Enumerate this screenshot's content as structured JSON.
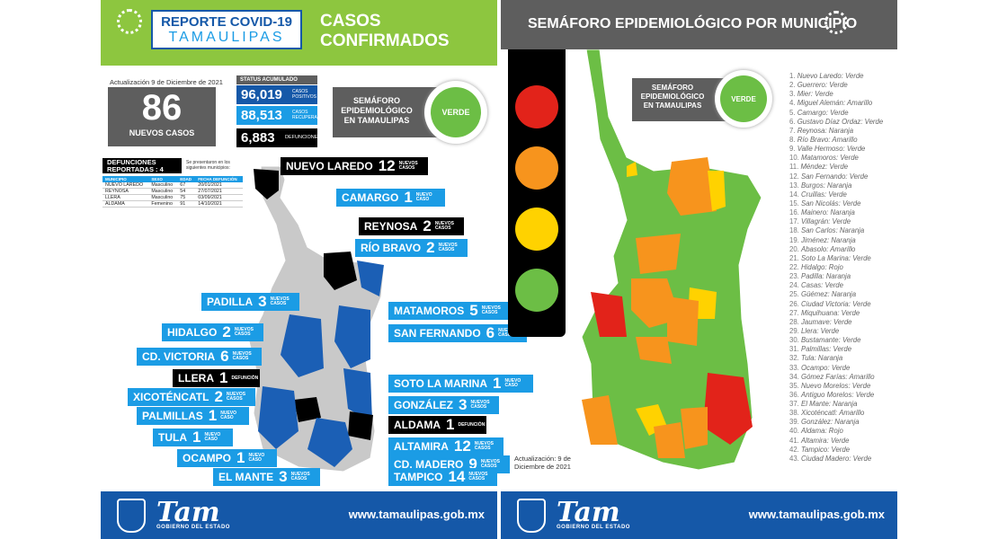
{
  "header": {
    "title_line1": "REPORTE COVID-19",
    "title_line2": "TAMAULIPAS",
    "section_title": "CASOS CONFIRMADOS",
    "right_title": "SEMÁFORO EPIDEMIOLÓGICO POR MUNICIPIO"
  },
  "update": "Actualización 9 de Diciembre de 2021",
  "new_cases": {
    "value": "86",
    "label": "NUEVOS CASOS"
  },
  "status": {
    "title": "STATUS ACUMULADO",
    "positivos": "96,019",
    "positivos_label": "CASOS POSITIVOS",
    "recuperados": "88,513",
    "recuperados_label": "CASOS RECUPERADOS",
    "defunciones": "6,883",
    "defunciones_label": "DEFUNCIONES"
  },
  "semaforo": {
    "label": "SEMÁFORO EPIDEMIOLÓGICO EN TAMAULIPAS",
    "status": "VERDE"
  },
  "deaths": {
    "title": "DEFUNCIONES REPORTADAS : 4",
    "note": "Se presentaron en los siguientes municipios:",
    "headers": [
      "MUNICIPIO",
      "SEXO",
      "EDAD",
      "FECHA DEFUNCIÓN"
    ],
    "rows": [
      [
        "NUEVO LAREDO",
        "Masculino",
        "67",
        "20/01/2021"
      ],
      [
        "REYNOSA",
        "Masculino",
        "54",
        "27/07/2021"
      ],
      [
        "LLERA",
        "Masculino",
        "75",
        "03/09/2021"
      ],
      [
        "ALDAMA",
        "Femenino",
        "91",
        "14/10/2021"
      ]
    ]
  },
  "labels": [
    {
      "name": "NUEVO LAREDO",
      "n": "12",
      "s": "NUEVOS CASOS",
      "c": "black"
    },
    {
      "name": "CAMARGO",
      "n": "1",
      "s": "NUEVO CASO",
      "c": "blue"
    },
    {
      "name": "REYNOSA",
      "n": "2",
      "s": "NUEVOS CASOS",
      "c": "black"
    },
    {
      "name": "RÍO BRAVO",
      "n": "2",
      "s": "NUEVOS CASOS",
      "c": "blue"
    },
    {
      "name": "PADILLA",
      "n": "3",
      "s": "NUEVOS CASOS",
      "c": "blue"
    },
    {
      "name": "MATAMOROS",
      "n": "5",
      "s": "NUEVOS CASOS",
      "c": "blue"
    },
    {
      "name": "HIDALGO",
      "n": "2",
      "s": "NUEVOS CASOS",
      "c": "blue"
    },
    {
      "name": "SAN FERNANDO",
      "n": "6",
      "s": "NUEVOS CASOS",
      "c": "blue"
    },
    {
      "name": "CD. VICTORIA",
      "n": "6",
      "s": "NUEVOS CASOS",
      "c": "blue"
    },
    {
      "name": "LLERA",
      "n": "1",
      "s": "DEFUNCIÓN",
      "c": "black"
    },
    {
      "name": "SOTO LA MARINA",
      "n": "1",
      "s": "NUEVO CASO",
      "c": "blue"
    },
    {
      "name": "XICOTÉNCATL",
      "n": "2",
      "s": "NUEVOS CASOS",
      "c": "blue"
    },
    {
      "name": "GONZÁLEZ",
      "n": "3",
      "s": "NUEVOS CASOS",
      "c": "blue"
    },
    {
      "name": "PALMILLAS",
      "n": "1",
      "s": "NUEVO CASO",
      "c": "blue"
    },
    {
      "name": "ALDAMA",
      "n": "1",
      "s": "DEFUNCIÓN",
      "c": "black"
    },
    {
      "name": "TULA",
      "n": "1",
      "s": "NUEVO CASO",
      "c": "blue"
    },
    {
      "name": "ALTAMIRA",
      "n": "12",
      "s": "NUEVOS CASOS",
      "c": "blue"
    },
    {
      "name": "OCAMPO",
      "n": "1",
      "s": "NUEVO CASO",
      "c": "blue"
    },
    {
      "name": "CD. MADERO",
      "n": "9",
      "s": "NUEVOS CASOS",
      "c": "blue"
    },
    {
      "name": "EL MANTE",
      "n": "3",
      "s": "NUEVOS CASOS",
      "c": "blue"
    },
    {
      "name": "TAMPICO",
      "n": "14",
      "s": "NUEVOS CASOS",
      "c": "blue"
    }
  ],
  "municipios": [
    [
      "1.",
      "Nuevo Laredo: Verde"
    ],
    [
      "2.",
      "Guerrero: Verde"
    ],
    [
      "3.",
      "Mier: Verde"
    ],
    [
      "4.",
      "Miguel Alemán: Amarillo"
    ],
    [
      "5.",
      "Camargo: Verde"
    ],
    [
      "6.",
      "Gustavo Díaz Ordaz: Verde"
    ],
    [
      "7.",
      "Reynosa: Naranja"
    ],
    [
      "8.",
      "Río Bravo: Amarillo"
    ],
    [
      "9.",
      "Valle Hermoso: Verde"
    ],
    [
      "10.",
      "Matamoros: Verde"
    ],
    [
      "11.",
      "Méndez: Verde"
    ],
    [
      "12.",
      "San Fernando: Verde"
    ],
    [
      "13.",
      "Burgos: Naranja"
    ],
    [
      "14.",
      "Cruillas: Verde"
    ],
    [
      "15.",
      "San Nicolás: Verde"
    ],
    [
      "16.",
      "Mainero: Naranja"
    ],
    [
      "17.",
      "Villagrán: Verde"
    ],
    [
      "18.",
      "San Carlos: Naranja"
    ],
    [
      "19.",
      "Jiménez: Naranja"
    ],
    [
      "20.",
      "Abasolo: Amarillo"
    ],
    [
      "21.",
      "Soto La Marina: Verde"
    ],
    [
      "22.",
      "Hidalgo: Rojo"
    ],
    [
      "23.",
      "Padilla: Naranja"
    ],
    [
      "24.",
      "Casas: Verde"
    ],
    [
      "25.",
      "Güémez: Naranja"
    ],
    [
      "26.",
      "Ciudad Victoria: Verde"
    ],
    [
      "27.",
      "Miquihuana: Verde"
    ],
    [
      "28.",
      "Jaumave: Verde"
    ],
    [
      "29.",
      "Llera: Verde"
    ],
    [
      "30.",
      "Bustamante: Verde"
    ],
    [
      "31.",
      "Palmillas: Verde"
    ],
    [
      "32.",
      "Tula: Naranja"
    ],
    [
      "33.",
      "Ocampo: Verde"
    ],
    [
      "34.",
      "Gómez Farías: Amarillo"
    ],
    [
      "35.",
      "Nuevo Morelos: Verde"
    ],
    [
      "36.",
      "Antiguo Morelos: Verde"
    ],
    [
      "37.",
      "El Mante: Naranja"
    ],
    [
      "38.",
      "Xicoténcatl: Amarillo"
    ],
    [
      "39.",
      "González: Naranja"
    ],
    [
      "40.",
      "Aldama: Rojo"
    ],
    [
      "41.",
      "Altamira: Verde"
    ],
    [
      "42.",
      "Tampico: Verde"
    ],
    [
      "43.",
      "Ciudad Madero: Verde"
    ]
  ],
  "right_update": "Actualización: 9 de Diciembre de 2021",
  "footer": {
    "url": "www.tamaulipas.gob.mx",
    "logo": "Tam",
    "logo_sub": "GOBIERNO DEL ESTADO"
  },
  "colors": {
    "green": "#8dc63f",
    "blue": "#1b9ce5",
    "verde": "#6cbe45",
    "naranja": "#f7941d",
    "amarillo": "#ffd200",
    "rojo": "#e2231a"
  }
}
